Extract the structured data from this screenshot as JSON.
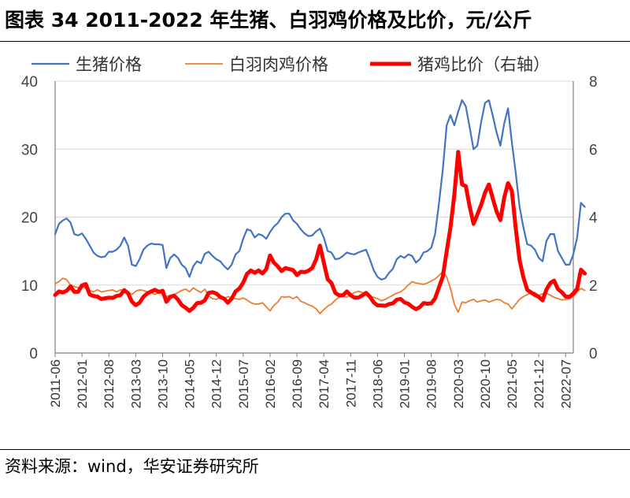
{
  "title": "图表 34 2011-2022 年生猪、白羽鸡价格及比价，元/公斤",
  "source": "资料来源：wind，华安证券研究所",
  "chart_data": {
    "type": "line",
    "x_start": "2011-06",
    "x_end": "2022-09",
    "x_tick_labels": [
      "2011-06",
      "2012-01",
      "2012-08",
      "2013-03",
      "2013-10",
      "2014-05",
      "2014-12",
      "2015-07",
      "2016-02",
      "2016-09",
      "2017-04",
      "2017-11",
      "2018-06",
      "2019-01",
      "2019-08",
      "2020-03",
      "2020-10",
      "2021-05",
      "2021-12",
      "2022-07"
    ],
    "y_left": {
      "min": 0,
      "max": 40,
      "ticks": [
        0,
        10,
        20,
        30,
        40
      ]
    },
    "y_right": {
      "min": 0,
      "max": 8,
      "ticks": [
        0,
        2,
        4,
        6,
        8
      ]
    },
    "grid": "horizontal",
    "legend_position": "top",
    "series": [
      {
        "name": "生猪价格",
        "axis": "left",
        "color": "#4472C4",
        "stroke_width": 2.2,
        "values": [
          17.5,
          19,
          19.5,
          19.8,
          19.2,
          17.5,
          17.3,
          17.6,
          16.8,
          15.8,
          14.8,
          14.3,
          14.1,
          14.2,
          14.9,
          14.9,
          15.2,
          15.8,
          17.0,
          15.8,
          13.0,
          12.8,
          13.8,
          15.2,
          15.8,
          16.1,
          16.0,
          16.0,
          15.9,
          12.5,
          14.0,
          14.5,
          14.0,
          13.0,
          12.5,
          11.2,
          12.8,
          13.5,
          13.2,
          14.6,
          14.9,
          14.3,
          13.8,
          13.5,
          12.8,
          12.3,
          13.0,
          14.5,
          15.0,
          16.8,
          18.2,
          18.0,
          17.0,
          17.5,
          17.3,
          16.8,
          17.8,
          18.6,
          19.1,
          20.0,
          20.5,
          20.5,
          19.5,
          19.0,
          18.2,
          17.6,
          17.2,
          17.3,
          17.9,
          18.3,
          17.0,
          15.0,
          14.8,
          13.8,
          13.9,
          14.3,
          14.8,
          14.6,
          14.5,
          14.8,
          15.0,
          15.2,
          13.8,
          12.2,
          11.2,
          10.8,
          11.0,
          11.8,
          12.4,
          13.8,
          14.3,
          14.0,
          14.5,
          14.3,
          13.3,
          13.8,
          14.8,
          15.0,
          15.5,
          17.5,
          22.0,
          27.0,
          33.5,
          35.0,
          33.5,
          35.5,
          37.2,
          36.3,
          33.2,
          30.0,
          30.5,
          34.0,
          36.8,
          37.2,
          35.0,
          32.5,
          30.5,
          33.8,
          36.0,
          31.0,
          26.5,
          21.5,
          18.5,
          16.0,
          15.8,
          15.2,
          14.0,
          13.5,
          16.5,
          17.5,
          17.5,
          15.0,
          14.0,
          13.0,
          13.0,
          14.5,
          17.0,
          22.1,
          21.5
        ],
        "note": "values are monthly from 2011-06"
      },
      {
        "name": "白羽肉鸡价格",
        "axis": "left",
        "color": "#ED7D31",
        "stroke_width": 1.8,
        "values": [
          10.2,
          10.5,
          11.0,
          10.8,
          10.0,
          9.8,
          9.6,
          9.8,
          9.5,
          9.2,
          9.0,
          9.3,
          9.0,
          9.1,
          9.2,
          9.3,
          9.0,
          9.3,
          9.2,
          9.0,
          8.6,
          9.1,
          9.3,
          9.2,
          9.0,
          8.9,
          8.6,
          8.9,
          8.7,
          8.3,
          8.5,
          8.6,
          8.9,
          9.2,
          9.4,
          9.0,
          9.6,
          9.2,
          8.9,
          9.4,
          8.4,
          8.0,
          7.9,
          8.2,
          8.0,
          8.3,
          8.1,
          8.0,
          7.9,
          8.1,
          7.8,
          7.4,
          7.2,
          7.2,
          7.4,
          6.8,
          6.2,
          7.0,
          7.5,
          8.3,
          8.2,
          8.3,
          8.0,
          8.3,
          7.6,
          7.4,
          7.1,
          6.9,
          6.5,
          5.8,
          6.4,
          6.9,
          7.2,
          7.8,
          8.2,
          8.4,
          8.2,
          8.6,
          8.9,
          9.1,
          8.9,
          8.6,
          8.3,
          8.2,
          8.0,
          7.7,
          7.9,
          8.2,
          8.5,
          8.8,
          9.0,
          9.4,
          10.0,
          10.5,
          10.3,
          10.2,
          10.1,
          10.3,
          10.6,
          10.9,
          11.4,
          12.0,
          11.2,
          9.5,
          7.2,
          6.0,
          7.5,
          7.4,
          7.7,
          7.9,
          7.5,
          7.7,
          7.8,
          7.5,
          7.7,
          7.9,
          7.8,
          7.4,
          7.2,
          6.5,
          7.2,
          7.9,
          8.3,
          8.6,
          8.9,
          8.9,
          8.5,
          8.7,
          8.8,
          8.5,
          8.2,
          8.0,
          7.8,
          7.9,
          8.0,
          8.3,
          9.0,
          9.5,
          9.2
        ],
        "note": "values are monthly from 2011-06"
      },
      {
        "name": "猪鸡比价（右轴）",
        "axis": "right",
        "color": "#FF0000",
        "stroke_width": 5,
        "values": [
          1.71,
          1.81,
          1.78,
          1.83,
          1.96,
          1.8,
          1.8,
          1.99,
          2.03,
          1.72,
          1.68,
          1.66,
          1.59,
          1.61,
          1.63,
          1.62,
          1.68,
          1.7,
          1.85,
          1.76,
          1.51,
          1.41,
          1.48,
          1.65,
          1.75,
          1.81,
          1.86,
          1.8,
          1.83,
          1.51,
          1.65,
          1.69,
          1.57,
          1.41,
          1.33,
          1.24,
          1.33,
          1.47,
          1.48,
          1.55,
          1.77,
          1.79,
          1.75,
          1.65,
          1.6,
          1.48,
          1.6,
          1.81,
          1.9,
          2.07,
          2.33,
          2.43,
          2.36,
          2.43,
          2.34,
          2.47,
          2.87,
          2.66,
          2.55,
          2.41,
          2.5,
          2.47,
          2.44,
          2.29,
          2.39,
          2.38,
          2.42,
          2.51,
          2.75,
          3.16,
          2.66,
          2.17,
          2.06,
          1.77,
          1.7,
          1.7,
          1.81,
          1.7,
          1.63,
          1.63,
          1.69,
          1.77,
          1.66,
          1.49,
          1.4,
          1.4,
          1.39,
          1.44,
          1.46,
          1.57,
          1.59,
          1.49,
          1.45,
          1.36,
          1.29,
          1.35,
          1.47,
          1.45,
          1.46,
          1.61,
          1.93,
          2.25,
          2.99,
          3.69,
          4.65,
          5.92,
          4.96,
          4.91,
          4.31,
          3.8,
          4.07,
          4.36,
          4.72,
          4.96,
          4.56,
          4.17,
          3.91,
          4.57,
          5.0,
          4.77,
          3.67,
          2.73,
          2.23,
          1.86,
          1.78,
          1.71,
          1.65,
          1.55,
          1.87,
          2.06,
          2.13,
          1.88,
          1.79,
          1.66,
          1.65,
          1.75,
          1.89,
          2.45,
          2.34
        ],
        "note": "values are monthly from 2011-06"
      }
    ]
  }
}
